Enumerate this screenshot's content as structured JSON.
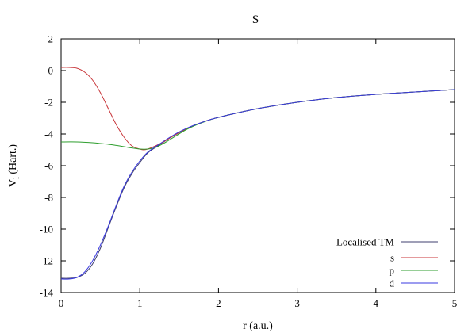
{
  "chart_data": {
    "type": "line",
    "title": "S",
    "xlabel": "r (a.u.)",
    "ylabel": "V",
    "ylabel_sub": "l",
    "ylabel_unit": " (Hart.)",
    "xlim": [
      0,
      5
    ],
    "ylim": [
      -14,
      2
    ],
    "xticks": [
      0,
      1,
      2,
      3,
      4,
      5
    ],
    "yticks": [
      2,
      0,
      -2,
      -4,
      -6,
      -8,
      -10,
      -12,
      -14
    ],
    "grid": false,
    "legend_position": "bottom-right",
    "series": [
      {
        "name": "Localised TM",
        "color": "#3f3f6f",
        "x": [
          0,
          0.1,
          0.2,
          0.3,
          0.4,
          0.5,
          0.6,
          0.7,
          0.8,
          0.9,
          1.0,
          1.1,
          1.2,
          1.4,
          1.6,
          1.8,
          2.0,
          2.5,
          3.0,
          3.5,
          4.0,
          4.5,
          5.0
        ],
        "y": [
          -13.1,
          -13.1,
          -13.05,
          -12.8,
          -12.2,
          -11.2,
          -9.9,
          -8.6,
          -7.4,
          -6.5,
          -5.8,
          -5.2,
          -4.85,
          -4.2,
          -3.65,
          -3.25,
          -2.95,
          -2.4,
          -2.0,
          -1.7,
          -1.5,
          -1.35,
          -1.2
        ]
      },
      {
        "name": "s",
        "color": "#c8363a",
        "x": [
          0,
          0.1,
          0.2,
          0.3,
          0.4,
          0.5,
          0.6,
          0.7,
          0.8,
          0.9,
          1.0,
          1.05,
          1.1,
          1.2,
          1.3,
          1.4,
          1.6,
          1.8,
          2.0,
          2.5,
          3.0,
          3.5,
          4.0,
          4.5,
          5.0
        ],
        "y": [
          0.2,
          0.2,
          0.15,
          -0.1,
          -0.6,
          -1.4,
          -2.4,
          -3.4,
          -4.2,
          -4.75,
          -4.95,
          -5.0,
          -4.95,
          -4.75,
          -4.5,
          -4.2,
          -3.65,
          -3.25,
          -2.95,
          -2.4,
          -2.0,
          -1.7,
          -1.5,
          -1.35,
          -1.2
        ]
      },
      {
        "name": "p",
        "color": "#2e9e2e",
        "x": [
          0,
          0.2,
          0.4,
          0.5,
          0.6,
          0.7,
          0.8,
          0.9,
          1.0,
          1.1,
          1.2,
          1.3,
          1.4,
          1.6,
          1.8,
          2.0,
          2.5,
          3.0,
          3.5,
          4.0,
          4.5,
          5.0
        ],
        "y": [
          -4.5,
          -4.5,
          -4.55,
          -4.6,
          -4.65,
          -4.72,
          -4.8,
          -4.88,
          -4.95,
          -4.95,
          -4.85,
          -4.6,
          -4.3,
          -3.7,
          -3.27,
          -2.95,
          -2.4,
          -2.0,
          -1.7,
          -1.5,
          -1.35,
          -1.2
        ]
      },
      {
        "name": "d",
        "color": "#3a3ae0",
        "x": [
          0,
          0.1,
          0.2,
          0.3,
          0.4,
          0.5,
          0.6,
          0.7,
          0.8,
          0.9,
          1.0,
          1.1,
          1.2,
          1.4,
          1.6,
          1.8,
          2.0,
          2.5,
          3.0,
          3.5,
          4.0,
          4.5,
          5.0
        ],
        "y": [
          -13.15,
          -13.15,
          -13.05,
          -12.7,
          -12.0,
          -11.0,
          -9.8,
          -8.5,
          -7.3,
          -6.4,
          -5.7,
          -5.15,
          -4.8,
          -4.15,
          -3.63,
          -3.25,
          -2.95,
          -2.4,
          -2.0,
          -1.7,
          -1.5,
          -1.35,
          -1.2
        ]
      }
    ]
  }
}
